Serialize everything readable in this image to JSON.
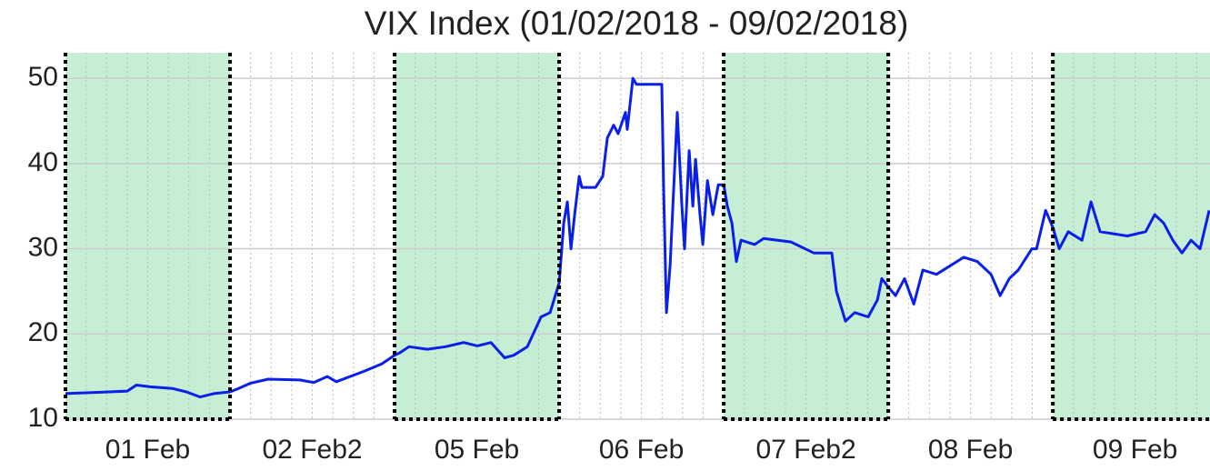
{
  "chart_data": {
    "type": "line",
    "title": "VIX Index (01/02/2018 - 09/02/2018)",
    "categories": [
      "01 Feb",
      "02 Feb2",
      "05 Feb",
      "06 Feb",
      "07 Feb2",
      "08 Feb",
      "09 Feb"
    ],
    "shaded": [
      0,
      2,
      4,
      6
    ],
    "shade_color": "#c6eed4",
    "xlim": [
      0,
      6.955
    ],
    "xticks": [
      0,
      1,
      2,
      3,
      4,
      5,
      6
    ],
    "ylim": [
      10,
      53
    ],
    "yticks": [
      10,
      20,
      30,
      40,
      50
    ],
    "grid": true,
    "series": [
      {
        "color": "#0a1fe8",
        "x": [
          0,
          0.265,
          0.376,
          0.431,
          0.514,
          0.652,
          0.735,
          0.818,
          0.901,
          1.0,
          1.039,
          1.122,
          1.232,
          1.425,
          1.508,
          1.591,
          1.646,
          1.729,
          1.812,
          1.923,
          2.0,
          2.033,
          2.088,
          2.199,
          2.309,
          2.42,
          2.503,
          2.586,
          2.669,
          2.724,
          2.807,
          2.89,
          2.945,
          3.0,
          3.028,
          3.05,
          3.072,
          3.094,
          3.122,
          3.138,
          3.221,
          3.265,
          3.293,
          3.331,
          3.359,
          3.403,
          3.414,
          3.448,
          3.47,
          3.624,
          3.635,
          3.652,
          3.674,
          3.718,
          3.746,
          3.762,
          3.79,
          3.812,
          3.829,
          3.856,
          3.873,
          3.901,
          3.934,
          3.967,
          4.0,
          4.022,
          4.05,
          4.077,
          4.105,
          4.188,
          4.243,
          4.409,
          4.547,
          4.657,
          4.685,
          4.74,
          4.796,
          4.878,
          4.934,
          4.961,
          5.0,
          5.044,
          5.099,
          5.155,
          5.21,
          5.293,
          5.376,
          5.459,
          5.541,
          5.624,
          5.68,
          5.735,
          5.79,
          5.873,
          5.901,
          5.956,
          6.0,
          6.039,
          6.094,
          6.177,
          6.232,
          6.287,
          6.453,
          6.564,
          6.619,
          6.674,
          6.729,
          6.785,
          6.84,
          6.895,
          6.95
        ],
        "values": [
          13,
          13.2,
          13.3,
          14,
          13.8,
          13.6,
          13.2,
          12.6,
          13,
          13.2,
          13.5,
          14.2,
          14.7,
          14.6,
          14.3,
          15,
          14.4,
          15,
          15.6,
          16.5,
          17.5,
          17.8,
          18.5,
          18.2,
          18.5,
          19,
          18.6,
          19,
          17.2,
          17.5,
          18.5,
          22,
          22.5,
          26,
          33,
          35.5,
          30,
          34,
          38.5,
          37.2,
          37.2,
          38.5,
          43,
          44.5,
          43.5,
          46,
          44,
          50,
          49.3,
          49.3,
          37,
          22.5,
          28,
          46,
          35,
          30,
          41.5,
          35,
          40.5,
          34,
          30.5,
          38,
          34,
          37.5,
          37.5,
          35,
          33,
          28.5,
          31,
          30.5,
          31.2,
          30.8,
          29.5,
          29.5,
          25,
          21.5,
          22.5,
          22,
          24,
          26.5,
          25.5,
          24.5,
          26.5,
          23.5,
          27.5,
          27,
          28,
          29,
          28.5,
          27,
          24.5,
          26.5,
          27.5,
          30,
          30,
          34.5,
          32.5,
          30,
          32,
          31,
          35.5,
          32,
          31.5,
          32,
          34,
          33,
          31,
          29.5,
          31,
          30,
          34.5
        ]
      }
    ]
  }
}
